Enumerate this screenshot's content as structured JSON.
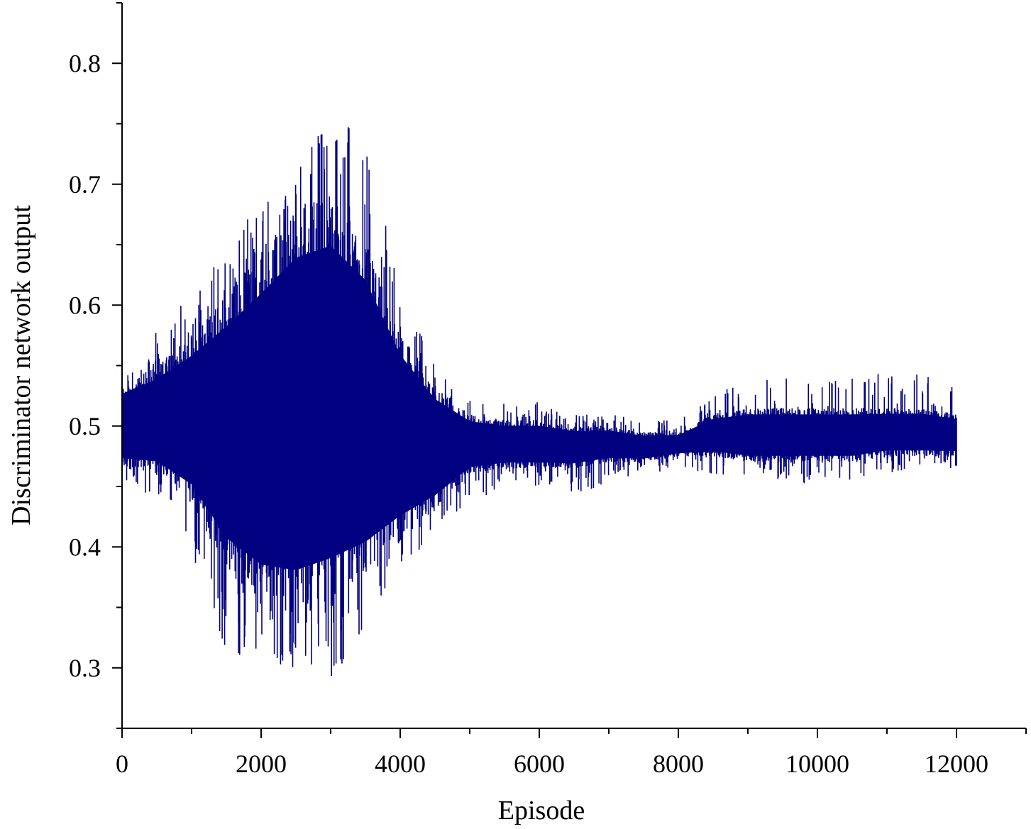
{
  "chart_data": {
    "type": "line",
    "title": "",
    "xlabel": "Episode",
    "ylabel": "Discriminator network output",
    "xlim": [
      0,
      13000
    ],
    "ylim": [
      0.25,
      0.85
    ],
    "x_ticks": [
      0,
      2000,
      4000,
      6000,
      8000,
      10000,
      12000
    ],
    "x_tick_labels": [
      "0",
      "2000",
      "4000",
      "6000",
      "8000",
      "10000",
      "12000"
    ],
    "y_ticks": [
      0.3,
      0.4,
      0.5,
      0.6,
      0.7,
      0.8
    ],
    "y_tick_labels": [
      "0.3",
      "0.4",
      "0.5",
      "0.6",
      "0.7",
      "0.8"
    ],
    "grid": false,
    "series": [
      {
        "color": "#000080",
        "envelope_x": [
          0,
          500,
          1000,
          1500,
          2000,
          2500,
          3000,
          3500,
          4000,
          4500,
          5000,
          5500,
          6000,
          6500,
          7000,
          7500,
          8000,
          8500,
          9000,
          9500,
          10000,
          10500,
          11000,
          11500,
          12000
        ],
        "envelope_upper": [
          0.535,
          0.55,
          0.575,
          0.61,
          0.645,
          0.68,
          0.69,
          0.655,
          0.58,
          0.535,
          0.51,
          0.505,
          0.505,
          0.5,
          0.5,
          0.495,
          0.495,
          0.51,
          0.515,
          0.515,
          0.515,
          0.515,
          0.515,
          0.515,
          0.51
        ],
        "envelope_lower": [
          0.465,
          0.46,
          0.435,
          0.38,
          0.35,
          0.34,
          0.35,
          0.37,
          0.405,
          0.43,
          0.46,
          0.465,
          0.465,
          0.465,
          0.47,
          0.47,
          0.475,
          0.475,
          0.47,
          0.47,
          0.47,
          0.47,
          0.475,
          0.475,
          0.475
        ],
        "spike_max": [
          0.55,
          0.58,
          0.61,
          0.66,
          0.69,
          0.72,
          0.76,
          0.74,
          0.62,
          0.55,
          0.53,
          0.52,
          0.52,
          0.51,
          0.51,
          0.505,
          0.505,
          0.525,
          0.54,
          0.54,
          0.54,
          0.54,
          0.55,
          0.545,
          0.54
        ],
        "spike_min": [
          0.45,
          0.44,
          0.39,
          0.31,
          0.3,
          0.3,
          0.29,
          0.33,
          0.38,
          0.41,
          0.44,
          0.445,
          0.45,
          0.44,
          0.455,
          0.46,
          0.465,
          0.46,
          0.455,
          0.455,
          0.45,
          0.455,
          0.46,
          0.465,
          0.465
        ]
      }
    ]
  }
}
